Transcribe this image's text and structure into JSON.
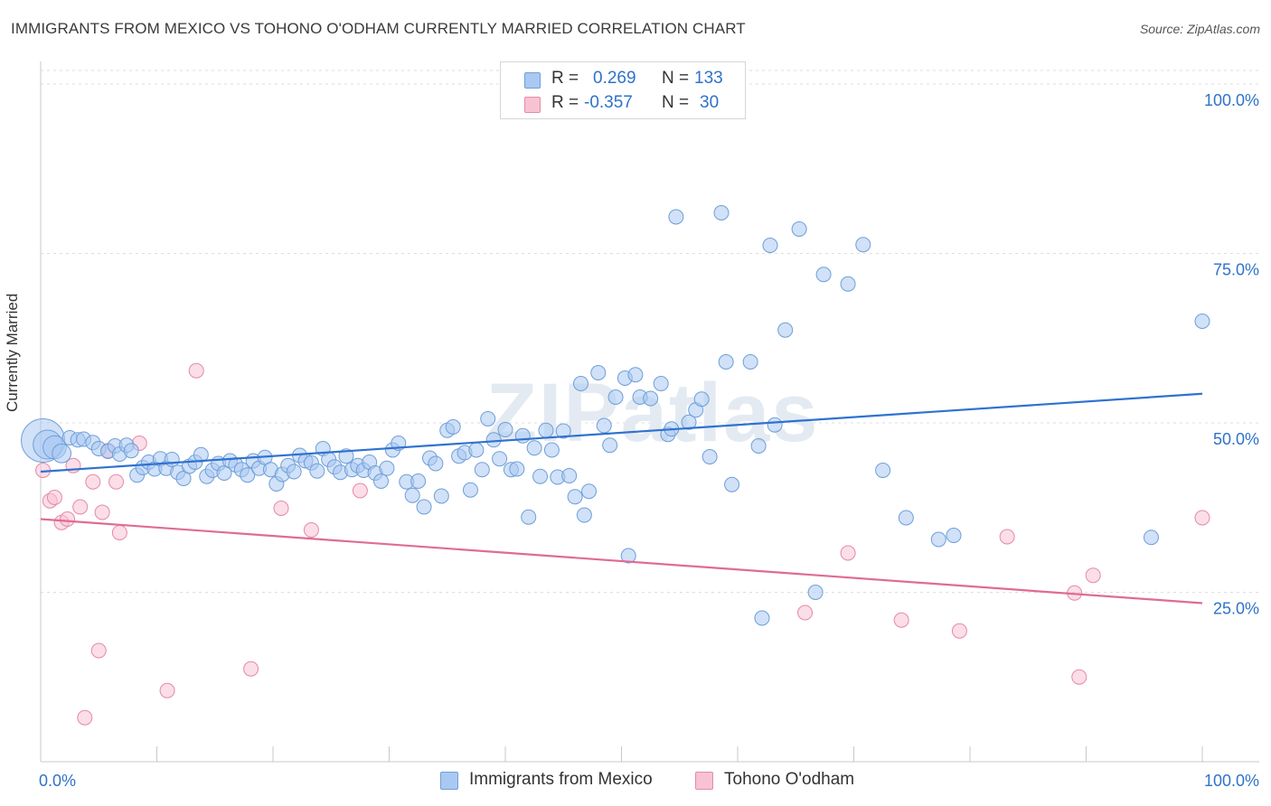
{
  "title": "IMMIGRANTS FROM MEXICO VS TOHONO O'ODHAM CURRENTLY MARRIED CORRELATION CHART",
  "source": "Source: ZipAtlas.com",
  "watermark": "ZIPatlas",
  "legend": {
    "r_label": "R =",
    "n_label": "N =",
    "rows": [
      {
        "name": "Immigrants from Mexico",
        "r": "0.269",
        "n": "133",
        "color": "#a9c9f2",
        "border": "#6f9fd8"
      },
      {
        "name": "Tohono O'odham",
        "r": "-0.357",
        "n": "30",
        "color": "#f7c3d3",
        "border": "#e48aa7"
      }
    ]
  },
  "colors": {
    "blue_fill": "#a9c9f2",
    "blue_stroke": "#6f9fd8",
    "blue_line": "#2f72d0",
    "pink_fill": "#f7c3d3",
    "pink_stroke": "#e48aa7",
    "pink_line": "#e06b95",
    "grid": "#dddddd",
    "axis_label": "#2f72c9"
  },
  "chart_data": {
    "type": "scatter",
    "title": "IMMIGRANTS FROM MEXICO VS TOHONO O'ODHAM CURRENTLY MARRIED CORRELATION CHART",
    "xlabel": "",
    "ylabel": "Currently Married",
    "xlim": [
      0,
      100
    ],
    "ylim": [
      0,
      102
    ],
    "x_tick_labels": [
      "0.0%",
      "100.0%"
    ],
    "y_ticks": [
      25,
      50,
      75,
      100
    ],
    "y_tick_labels": [
      "25.0%",
      "50.0%",
      "75.0%",
      "100.0%"
    ],
    "grid": true,
    "series": [
      {
        "name": "Immigrants from Mexico",
        "r": 0.269,
        "n": 133,
        "trend": {
          "x": [
            0,
            100
          ],
          "y": [
            42.8,
            54.3
          ]
        },
        "points": [
          [
            0.2,
            47.4,
            3
          ],
          [
            0.6,
            46.8,
            2
          ],
          [
            1.2,
            46.4,
            1.6
          ],
          [
            1.8,
            45.5,
            1.3
          ],
          [
            2.5,
            47.8,
            1
          ],
          [
            3.2,
            47.5,
            1
          ],
          [
            3.7,
            47.6,
            1
          ],
          [
            4.5,
            47.1,
            1
          ],
          [
            5.0,
            46.2,
            1
          ],
          [
            5.8,
            45.8,
            1
          ],
          [
            6.4,
            46.6,
            1
          ],
          [
            6.8,
            45.4,
            1
          ],
          [
            7.4,
            46.7,
            1
          ],
          [
            7.8,
            45.9,
            1
          ],
          [
            8.3,
            42.3,
            1
          ],
          [
            8.8,
            43.4,
            1
          ],
          [
            9.3,
            44.2,
            1
          ],
          [
            9.8,
            43.2,
            1
          ],
          [
            10.3,
            44.7,
            1
          ],
          [
            10.8,
            43.3,
            1
          ],
          [
            11.3,
            44.6,
            1
          ],
          [
            11.8,
            42.7,
            1
          ],
          [
            12.3,
            41.8,
            1
          ],
          [
            12.8,
            43.6,
            1
          ],
          [
            13.3,
            44.2,
            1
          ],
          [
            13.8,
            45.3,
            1
          ],
          [
            14.3,
            42.1,
            1
          ],
          [
            14.8,
            43.0,
            1
          ],
          [
            15.3,
            44.0,
            1
          ],
          [
            15.8,
            42.6,
            1
          ],
          [
            16.3,
            44.4,
            1
          ],
          [
            16.8,
            43.8,
            1
          ],
          [
            17.3,
            43.1,
            1
          ],
          [
            17.8,
            42.3,
            1
          ],
          [
            18.3,
            44.4,
            1
          ],
          [
            18.8,
            43.3,
            1
          ],
          [
            19.3,
            44.9,
            1
          ],
          [
            19.8,
            43.1,
            1
          ],
          [
            20.3,
            41.0,
            1
          ],
          [
            20.8,
            42.4,
            1
          ],
          [
            21.3,
            43.7,
            1
          ],
          [
            21.8,
            42.8,
            1
          ],
          [
            22.3,
            45.2,
            1
          ],
          [
            22.8,
            44.4,
            1
          ],
          [
            23.3,
            44.1,
            1
          ],
          [
            23.8,
            42.9,
            1
          ],
          [
            24.3,
            46.2,
            1
          ],
          [
            24.8,
            44.6,
            1
          ],
          [
            25.3,
            43.5,
            1
          ],
          [
            25.8,
            42.7,
            1
          ],
          [
            26.3,
            45.1,
            1
          ],
          [
            26.8,
            43.1,
            1
          ],
          [
            27.3,
            43.7,
            1
          ],
          [
            27.8,
            43.0,
            1
          ],
          [
            28.3,
            44.2,
            1
          ],
          [
            28.8,
            42.6,
            1
          ],
          [
            29.3,
            41.4,
            1
          ],
          [
            29.8,
            43.3,
            1
          ],
          [
            30.3,
            46.0,
            1
          ],
          [
            30.8,
            47.0,
            1
          ],
          [
            31.5,
            41.3,
            1
          ],
          [
            32.0,
            39.3,
            1
          ],
          [
            32.5,
            41.4,
            1
          ],
          [
            33.0,
            37.6,
            1
          ],
          [
            33.5,
            44.8,
            1
          ],
          [
            34.0,
            44.0,
            1
          ],
          [
            34.5,
            39.2,
            1
          ],
          [
            35.0,
            48.9,
            1
          ],
          [
            35.5,
            49.4,
            1
          ],
          [
            36.0,
            45.1,
            1
          ],
          [
            36.5,
            45.6,
            1
          ],
          [
            37.0,
            40.1,
            1
          ],
          [
            37.5,
            46.0,
            1
          ],
          [
            38.0,
            43.1,
            1
          ],
          [
            38.5,
            50.6,
            1
          ],
          [
            39.0,
            47.5,
            1
          ],
          [
            39.5,
            44.7,
            1
          ],
          [
            40.0,
            49.0,
            1
          ],
          [
            40.5,
            43.1,
            1
          ],
          [
            41.0,
            43.2,
            1
          ],
          [
            41.5,
            48.1,
            1
          ],
          [
            42.0,
            36.1,
            1
          ],
          [
            42.5,
            46.3,
            1
          ],
          [
            43.0,
            42.1,
            1
          ],
          [
            43.5,
            48.9,
            1
          ],
          [
            44.0,
            46.0,
            1
          ],
          [
            44.5,
            42.0,
            1
          ],
          [
            45.0,
            48.8,
            1
          ],
          [
            45.5,
            42.2,
            1
          ],
          [
            46.5,
            55.8,
            1
          ],
          [
            46.0,
            39.1,
            1
          ],
          [
            46.8,
            36.4,
            1
          ],
          [
            47.2,
            39.9,
            1
          ],
          [
            48.0,
            57.4,
            1
          ],
          [
            48.5,
            49.6,
            1
          ],
          [
            49.0,
            46.7,
            1
          ],
          [
            49.5,
            53.8,
            1
          ],
          [
            50.3,
            56.6,
            1
          ],
          [
            50.6,
            30.4,
            1
          ],
          [
            51.2,
            57.1,
            1
          ],
          [
            51.6,
            53.8,
            1
          ],
          [
            52.5,
            53.6,
            1
          ],
          [
            53.4,
            55.8,
            1
          ],
          [
            54.0,
            48.3,
            1
          ],
          [
            54.3,
            49.1,
            1
          ],
          [
            54.7,
            80.4,
            1
          ],
          [
            55.8,
            50.1,
            1
          ],
          [
            56.4,
            51.9,
            1
          ],
          [
            56.9,
            53.5,
            1
          ],
          [
            57.6,
            45.0,
            1
          ],
          [
            58.6,
            81.0,
            1
          ],
          [
            59.0,
            59.0,
            1
          ],
          [
            59.5,
            40.9,
            1
          ],
          [
            61.1,
            59.0,
            1
          ],
          [
            61.8,
            46.6,
            1
          ],
          [
            62.8,
            76.2,
            1
          ],
          [
            62.1,
            21.2,
            1
          ],
          [
            63.2,
            49.7,
            1
          ],
          [
            64.1,
            63.7,
            1
          ],
          [
            65.3,
            78.6,
            1
          ],
          [
            66.7,
            25.0,
            1
          ],
          [
            67.4,
            71.9,
            1
          ],
          [
            69.5,
            70.5,
            1
          ],
          [
            70.8,
            76.3,
            1
          ],
          [
            72.5,
            43.0,
            1
          ],
          [
            74.5,
            36.0,
            1
          ],
          [
            77.3,
            32.8,
            1
          ],
          [
            78.6,
            33.4,
            1
          ],
          [
            95.6,
            33.1,
            1
          ],
          [
            100.0,
            65.0,
            1
          ]
        ]
      },
      {
        "name": "Tohono O'odham",
        "r": -0.357,
        "n": 30,
        "trend": {
          "x": [
            0,
            100
          ],
          "y": [
            35.8,
            23.4
          ]
        },
        "points": [
          [
            0.2,
            43.0,
            1
          ],
          [
            0.8,
            38.5,
            1
          ],
          [
            1.2,
            39.0,
            1
          ],
          [
            1.8,
            35.3,
            1
          ],
          [
            2.3,
            35.8,
            1
          ],
          [
            2.8,
            43.7,
            1
          ],
          [
            3.4,
            37.6,
            1
          ],
          [
            3.8,
            6.5,
            1
          ],
          [
            4.5,
            41.3,
            1
          ],
          [
            5.0,
            16.4,
            1
          ],
          [
            5.3,
            36.8,
            1
          ],
          [
            5.8,
            45.9,
            1
          ],
          [
            6.5,
            41.3,
            1
          ],
          [
            6.8,
            33.8,
            1
          ],
          [
            8.5,
            47.0,
            1
          ],
          [
            10.9,
            10.5,
            1
          ],
          [
            13.4,
            57.7,
            1
          ],
          [
            18.1,
            13.7,
            1
          ],
          [
            20.7,
            37.4,
            1
          ],
          [
            23.3,
            34.2,
            1
          ],
          [
            27.5,
            40.0,
            1
          ],
          [
            65.8,
            22.0,
            1
          ],
          [
            69.5,
            30.8,
            1
          ],
          [
            74.1,
            20.9,
            1
          ],
          [
            79.1,
            19.3,
            1
          ],
          [
            83.2,
            33.2,
            1
          ],
          [
            89.0,
            24.9,
            1
          ],
          [
            89.4,
            12.5,
            1
          ],
          [
            90.6,
            27.5,
            1
          ],
          [
            100.0,
            36.0,
            1
          ]
        ]
      }
    ]
  }
}
